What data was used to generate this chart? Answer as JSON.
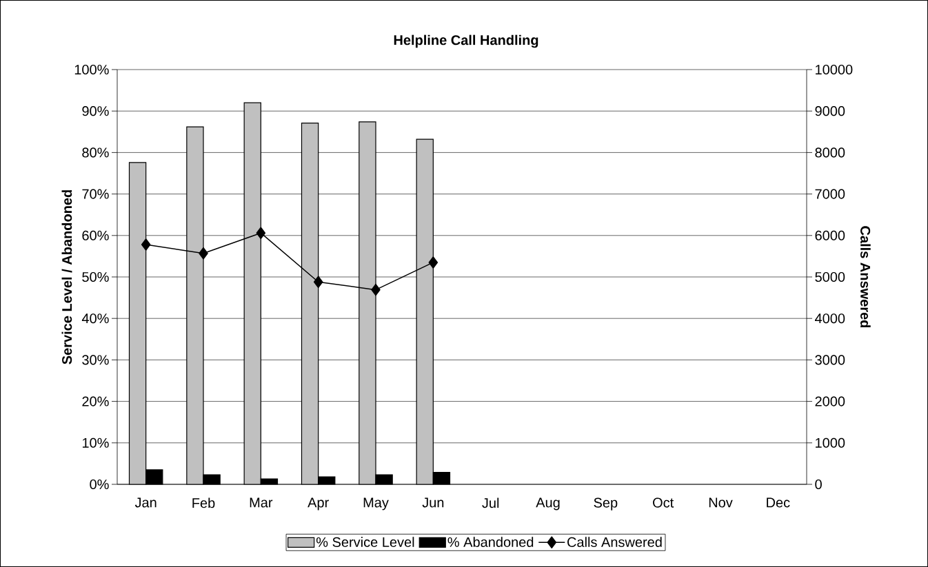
{
  "chart_data": {
    "type": "bar",
    "title": "Helpline Call Handling",
    "ylabel": "Service Level / Abandoned",
    "y2label": "Calls Answered",
    "categories": [
      "Jan",
      "Feb",
      "Mar",
      "Apr",
      "May",
      "Jun",
      "Jul",
      "Aug",
      "Sep",
      "Oct",
      "Nov",
      "Dec"
    ],
    "series": [
      {
        "name": "% Service Level",
        "color": "#c0c0c0",
        "values": [
          77.6,
          86.2,
          92.0,
          87.1,
          87.4,
          83.2,
          null,
          null,
          null,
          null,
          null,
          null
        ]
      },
      {
        "name": "% Abandoned",
        "color": "#000000",
        "values": [
          3.5,
          2.3,
          1.3,
          1.8,
          2.3,
          2.9,
          null,
          null,
          null,
          null,
          null,
          null
        ]
      },
      {
        "name": "Calls Answered",
        "type": "line",
        "axis": "y2",
        "color": "#000000",
        "marker": "diamond",
        "values": [
          5780,
          5570,
          6060,
          4880,
          4690,
          5350,
          null,
          null,
          null,
          null,
          null,
          null
        ]
      }
    ],
    "ylim": [
      0,
      100
    ],
    "yticks": [
      {
        "value": 0,
        "label": "0%"
      },
      {
        "value": 10,
        "label": "10%"
      },
      {
        "value": 20,
        "label": "20%"
      },
      {
        "value": 30,
        "label": "30%"
      },
      {
        "value": 40,
        "label": "40%"
      },
      {
        "value": 50,
        "label": "50%"
      },
      {
        "value": 60,
        "label": "60%"
      },
      {
        "value": 70,
        "label": "70%"
      },
      {
        "value": 80,
        "label": "80%"
      },
      {
        "value": 90,
        "label": "90%"
      },
      {
        "value": 100,
        "label": "100%"
      }
    ],
    "y2lim": [
      0,
      10000
    ],
    "y2ticks": [
      0,
      1000,
      2000,
      3000,
      4000,
      5000,
      6000,
      7000,
      8000,
      9000,
      10000
    ],
    "grid": "y",
    "legend": "bottom"
  }
}
